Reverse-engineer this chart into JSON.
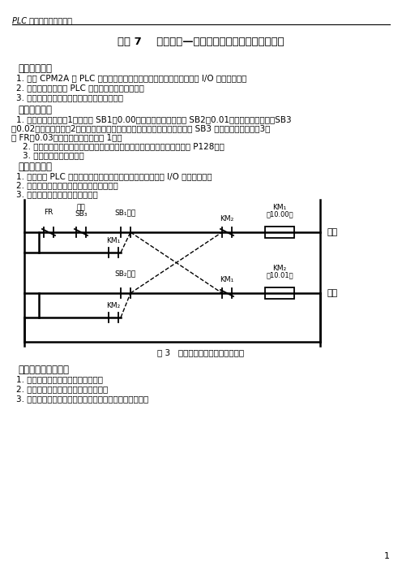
{
  "page_title_italic": "PLC 应用技术实验指导书",
  "chapter_title": "实验 7    综合实验—三相异步电动机正反停控制程序",
  "section1_title": "一、实验目的",
  "section1_items": [
    "1. 熟悉 CPM2A 型 PLC 的交流和直流电源的连接，熟悉输入开关板和 I/O 端子的连接。",
    "2. 通过实验程序熟悉 PLC 常用基本逻辑指令应用。",
    "3. 初步掌握简单控制程序的设计及编程方法。"
  ],
  "section2_title": "二、实验内容",
  "section2_line1": "1. 控制要求如下：（1）由按鈕 SB1（0.00）控制电动机正转，由 SB2（0.01）控制电动机反转，SB3",
  "section2_line2": "（0.02）控制停车；（2）正反转起动运行可以直接切换，不必经过停车，用 SB3 控制正反转停车；（3）",
  "section2_line3": "由 FR（0.03）作为过载保护（见图 1）。",
  "section2_item2": "2. 认真阅读分析三相异步电动机可逆控制的要求，编写梯形图程序（参考 P128）。",
  "section2_item3": "3. 调试并监控程序运行。",
  "section3_title": "三、实验步骤",
  "section3_items": [
    "1. 正确连接 PLC 所需的各种电源、程序所需的输入开关板和 I/O 的接线端子。",
    "2. 输入三相异步电动机可逆运行实验程序。",
    "3. 运行、监控并调试，观察结果。"
  ],
  "fig_caption": "图 3   电动机正反停维电器控制电路",
  "section4_title": "四、实验总结及思考",
  "section4_items": [
    "1. 总结本次实验中程序运行的结果。",
    "2. 写出上述梯形图程序的指令语句表。",
    "3. 说明怎样编程可以使梯形图简洁直观，避免分支输出？"
  ],
  "page_number": "1",
  "bg_color": "#ffffff"
}
